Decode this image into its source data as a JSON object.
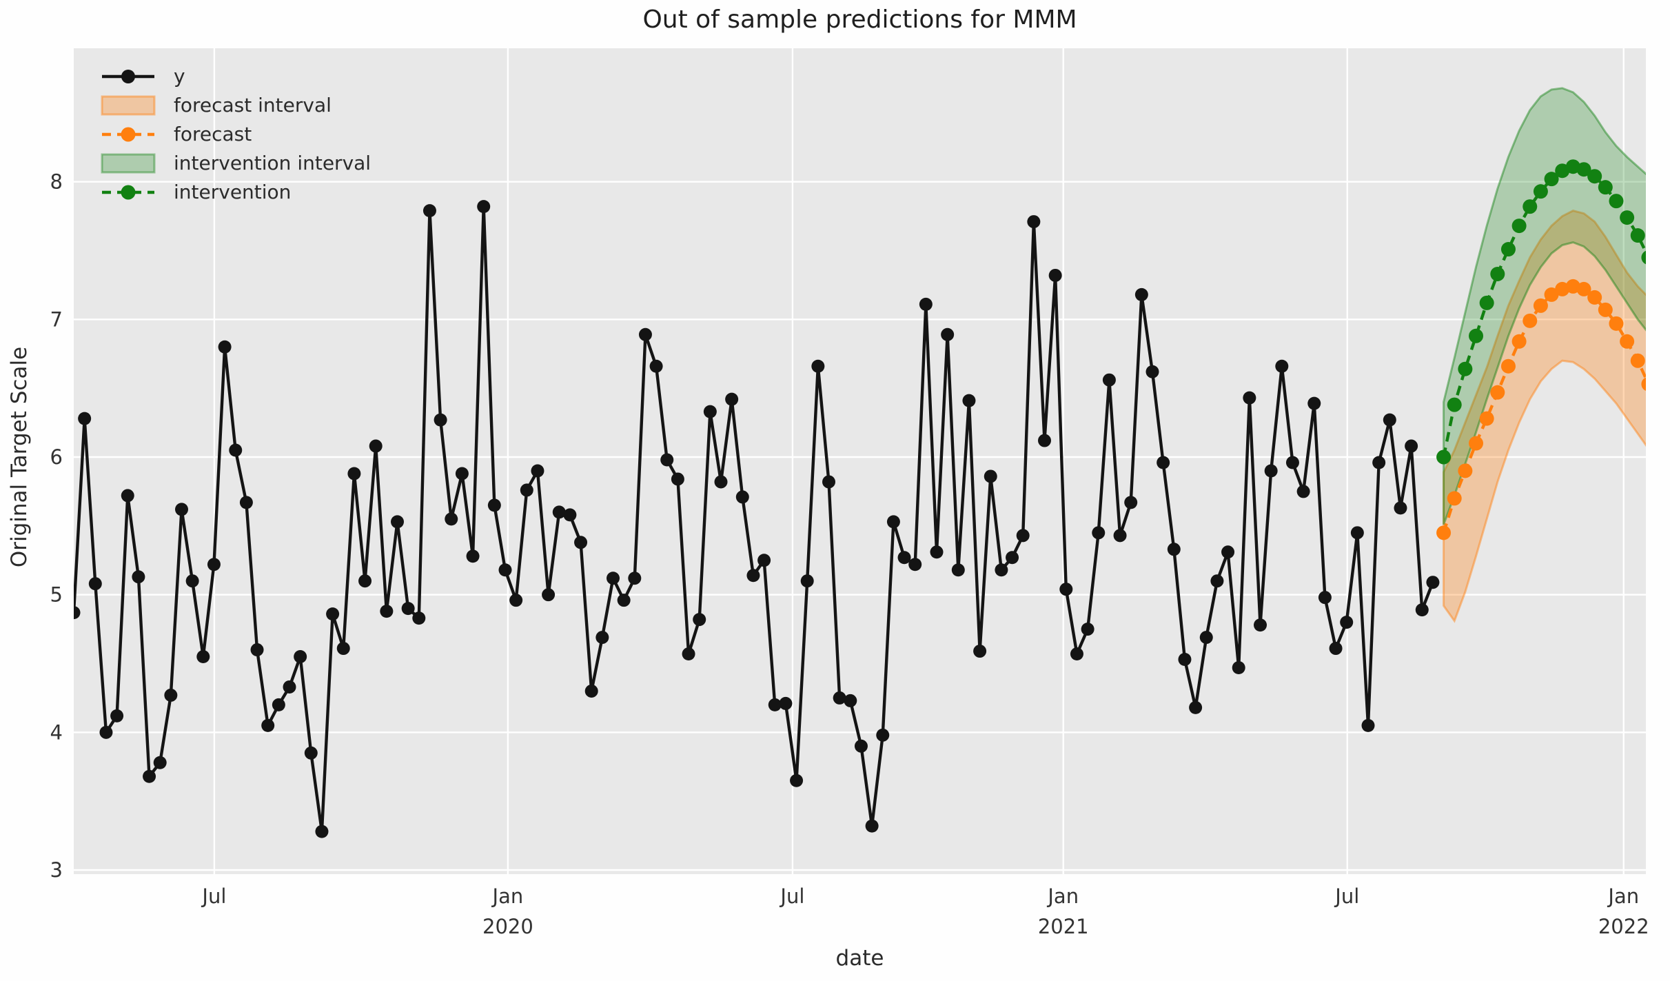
{
  "title": "Out of sample predictions for MMM",
  "axes": {
    "xlabel": "date",
    "ylabel": "Original Target Scale"
  },
  "legend": {
    "items": [
      {
        "label": "y",
        "swatch": "black-line-marker"
      },
      {
        "label": "forecast interval",
        "swatch": "orange-band"
      },
      {
        "label": "forecast",
        "swatch": "orange-dashed-marker"
      },
      {
        "label": "intervention interval",
        "swatch": "green-band"
      },
      {
        "label": "intervention",
        "swatch": "green-dashed-marker"
      }
    ],
    "position": "upper left"
  },
  "colors": {
    "figure_background": "#fefefe",
    "plot_background": "#e8e8e8",
    "grid": "#ffffff",
    "y_series": "#141414",
    "forecast": "#ff7f0e",
    "forecast_band_fill": "#ff7f0e",
    "intervention": "#128112",
    "intervention_band_fill": "#128112",
    "text": "#2b2b2b",
    "tick_text": "#333333"
  },
  "chart_data": {
    "type": "line",
    "title": "Out of sample predictions for MMM",
    "xlabel": "date",
    "ylabel": "Original Target Scale",
    "grid": true,
    "legend_position": "upper left",
    "ylim": [
      2.97,
      8.97
    ],
    "xlim_weeks": [
      0,
      145.75
    ],
    "y_ticks": [
      3,
      4,
      5,
      6,
      7,
      8
    ],
    "x_ticks": [
      {
        "label": "Jul",
        "year": "",
        "week": 13.03
      },
      {
        "label": "Jan",
        "year": "2020",
        "week": 40.25
      },
      {
        "label": "Jul",
        "year": "",
        "week": 66.64
      },
      {
        "label": "Jan",
        "year": "2021",
        "week": 91.74
      },
      {
        "label": "Jul",
        "year": "",
        "week": 118.07
      },
      {
        "label": "Jan",
        "year": "2022",
        "week": 143.69
      }
    ],
    "series": [
      {
        "name": "y",
        "style": "solid",
        "markers": true,
        "color": "#141414",
        "start_week": 0,
        "step_weeks": 1,
        "values": [
          4.87,
          6.28,
          5.08,
          4.0,
          4.12,
          5.72,
          5.13,
          3.68,
          3.78,
          4.27,
          5.62,
          5.1,
          4.55,
          5.22,
          6.8,
          6.05,
          5.67,
          4.6,
          4.05,
          4.2,
          4.33,
          4.55,
          3.85,
          3.28,
          4.86,
          4.61,
          5.88,
          5.1,
          6.08,
          4.88,
          5.53,
          4.9,
          4.83,
          7.79,
          6.27,
          5.55,
          5.88,
          5.28,
          7.82,
          5.65,
          5.18,
          4.96,
          5.76,
          5.9,
          5.0,
          5.6,
          5.58,
          5.38,
          4.3,
          4.69,
          5.12,
          4.96,
          5.12,
          6.89,
          6.66,
          5.98,
          5.84,
          4.57,
          4.82,
          6.33,
          5.82,
          6.42,
          5.71,
          5.14,
          5.25,
          4.2,
          4.21,
          3.65,
          5.1,
          6.66,
          5.82,
          4.25,
          4.23,
          3.9,
          3.32,
          3.98,
          5.53,
          5.27,
          5.22,
          7.11,
          5.31,
          6.89,
          5.18,
          6.41,
          4.59,
          5.86,
          5.18,
          5.27,
          5.43,
          7.71,
          6.12,
          7.32,
          5.04,
          4.57,
          4.75,
          5.45,
          6.56,
          5.43,
          5.67,
          7.18,
          6.62,
          5.96,
          5.33,
          4.53,
          4.18,
          4.69,
          5.1,
          5.31,
          4.47,
          6.43,
          4.78,
          5.9,
          6.66,
          5.96,
          5.75,
          6.39,
          4.98,
          4.61,
          4.8,
          5.45,
          4.05,
          5.96,
          6.27,
          5.63,
          6.08,
          4.89,
          5.09
        ]
      },
      {
        "name": "forecast",
        "style": "dashed",
        "markers": true,
        "color": "#ff7f0e",
        "band_name": "forecast interval",
        "band_fill_opacity": 0.32,
        "start_week": 127,
        "step_weeks": 1,
        "values": [
          5.45,
          5.7,
          5.9,
          6.1,
          6.28,
          6.47,
          6.66,
          6.84,
          6.99,
          7.1,
          7.18,
          7.22,
          7.24,
          7.22,
          7.16,
          7.07,
          6.97,
          6.84,
          6.7,
          6.53
        ],
        "lower": [
          4.92,
          4.81,
          5.02,
          5.28,
          5.55,
          5.82,
          6.05,
          6.25,
          6.42,
          6.55,
          6.64,
          6.7,
          6.69,
          6.64,
          6.57,
          6.48,
          6.39,
          6.28,
          6.17,
          6.06
        ],
        "upper": [
          5.89,
          6.05,
          6.25,
          6.45,
          6.65,
          6.88,
          7.1,
          7.28,
          7.45,
          7.58,
          7.68,
          7.75,
          7.79,
          7.77,
          7.71,
          7.6,
          7.47,
          7.34,
          7.24,
          7.16
        ]
      },
      {
        "name": "intervention",
        "style": "dashed",
        "markers": true,
        "color": "#128112",
        "band_name": "intervention interval",
        "band_fill_opacity": 0.27,
        "start_week": 127,
        "step_weeks": 1,
        "values": [
          6.0,
          6.38,
          6.64,
          6.88,
          7.12,
          7.33,
          7.51,
          7.68,
          7.82,
          7.93,
          8.02,
          8.08,
          8.11,
          8.09,
          8.04,
          7.96,
          7.86,
          7.74,
          7.61,
          7.45
        ],
        "lower": [
          5.51,
          5.72,
          5.95,
          6.18,
          6.42,
          6.65,
          6.88,
          7.08,
          7.25,
          7.38,
          7.48,
          7.54,
          7.56,
          7.53,
          7.46,
          7.36,
          7.24,
          7.12,
          7.0,
          6.9
        ],
        "upper": [
          6.4,
          6.72,
          7.05,
          7.38,
          7.68,
          7.95,
          8.18,
          8.37,
          8.52,
          8.62,
          8.67,
          8.68,
          8.65,
          8.58,
          8.48,
          8.36,
          8.26,
          8.18,
          8.11,
          8.04
        ]
      }
    ]
  }
}
